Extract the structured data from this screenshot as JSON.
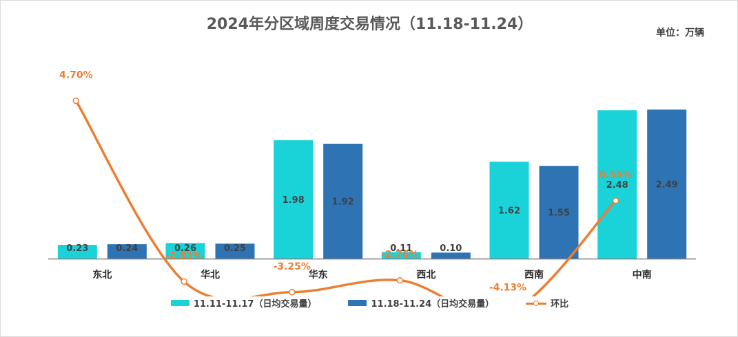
{
  "chart_data": {
    "type": "bar",
    "title": "2024年分区域周度交易情况（11.18-11.24）",
    "unit": "单位：万辆",
    "categories": [
      "东北",
      "华北",
      "华东",
      "西北",
      "西南",
      "中南"
    ],
    "series": [
      {
        "name": "11.11-11.17（日均交易量）",
        "type": "bar",
        "color": "#1ad3d9",
        "values": [
          0.23,
          0.26,
          1.98,
          0.11,
          1.62,
          2.48
        ],
        "labels": [
          "0.23",
          "0.26",
          "1.98",
          "0.11",
          "1.62",
          "2.48"
        ]
      },
      {
        "name": "11.18-11.24（日均交易量）",
        "type": "bar",
        "color": "#2e74b5",
        "values": [
          0.24,
          0.25,
          1.92,
          0.1,
          1.55,
          2.49
        ],
        "labels": [
          "0.24",
          "0.25",
          "1.92",
          "0.10",
          "1.55",
          "2.49"
        ]
      },
      {
        "name": "环比",
        "type": "line",
        "color": "#ed7d31",
        "values": [
          4.7,
          -2.81,
          -3.25,
          -2.76,
          -4.13,
          0.55
        ],
        "labels": [
          "4.70%",
          "-2.81%",
          "-3.25%",
          "-2.76%",
          "-4.13%",
          "0.55%"
        ]
      }
    ],
    "legend_position": "bottom",
    "grid": false
  }
}
